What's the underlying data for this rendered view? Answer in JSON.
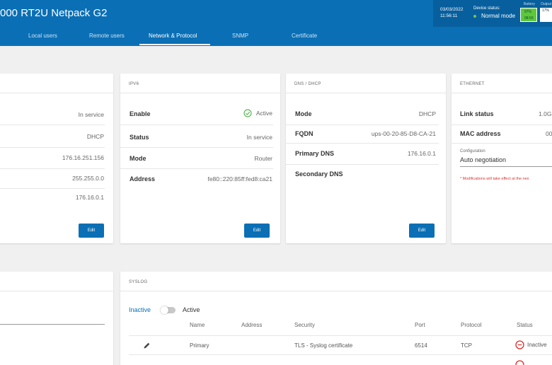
{
  "header": {
    "title": "000 RT2U Netpack G2",
    "date": "03/03/2022",
    "time": "11:56:11",
    "device_status_label": "Device status:",
    "device_status": "Normal mode",
    "battery_label": "Battery",
    "battery_pct": "97%",
    "battery_time": "08:59",
    "output_label": "Output",
    "output_pct": "17%"
  },
  "tabs": [
    {
      "label": "Local users"
    },
    {
      "label": "Remote users"
    },
    {
      "label": "Network & Protocol",
      "active": true
    },
    {
      "label": "SNMP"
    },
    {
      "label": "Certificate"
    }
  ],
  "ipv4": {
    "values": [
      "In service",
      "DHCP",
      "176.16.251.156",
      "255.255.0.0",
      "176.16.0.1"
    ],
    "edit_label": "Edit"
  },
  "ipv6": {
    "title": "IPV6",
    "enable_label": "Enable",
    "enable_value": "Active",
    "status_label": "Status",
    "status_value": "In service",
    "mode_label": "Mode",
    "mode_value": "Router",
    "address_label": "Address",
    "address_value": "fe80::220:85ff:fed8:ca21",
    "edit_label": "Edit"
  },
  "dns": {
    "title": "DNS / DHCP",
    "mode_label": "Mode",
    "mode_value": "DHCP",
    "fqdn_label": "FQDN",
    "fqdn_value": "ups-00-20-85-D8-CA-21",
    "primary_label": "Primary DNS",
    "primary_value": "176.16.0.1",
    "secondary_label": "Secondary DNS",
    "edit_label": "Edit"
  },
  "ethernet": {
    "title": "ETHERNET",
    "link_label": "Link status",
    "link_value": "1.0G",
    "mac_label": "MAC address",
    "mac_value": "00",
    "config_label": "Configuration",
    "config_value": "Auto negotiation",
    "note": "* Modifications will take effect at the nex"
  },
  "syslog": {
    "title": "SYSLOG",
    "inactive_label": "Inactive",
    "active_label": "Active",
    "columns": [
      "Name",
      "Address",
      "Security",
      "Port",
      "Protocol",
      "Status"
    ],
    "rows": [
      {
        "name": "Primary",
        "address": "",
        "security": "TLS - Syslog certificate",
        "port": "6514",
        "protocol": "TCP",
        "status": "Inactive"
      }
    ]
  },
  "colors": {
    "primary": "#0a6fb5",
    "success": "#5cb85c",
    "danger": "#d9302c"
  }
}
